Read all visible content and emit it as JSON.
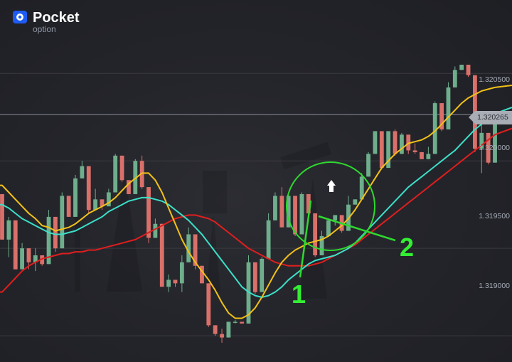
{
  "brand": {
    "name": "Pocket",
    "sub": "option"
  },
  "chart_data": {
    "type": "candlestick",
    "y_ticks": [
      {
        "value": 1.3205,
        "label": "1.320500"
      },
      {
        "value": 1.32,
        "label": "1.320000"
      },
      {
        "value": 1.3195,
        "label": "1.319500"
      },
      {
        "value": 1.319,
        "label": "1.319000"
      }
    ],
    "current_price": {
      "value": 1.320265,
      "label": "1.320265"
    },
    "ylim": [
      1.31885,
      1.32092
    ],
    "candles": [
      [
        1.31981,
        1.31981,
        1.31955,
        1.31955
      ],
      [
        1.31955,
        1.31968,
        1.31945,
        1.31966
      ],
      [
        1.31966,
        1.31966,
        1.31938,
        1.31938
      ],
      [
        1.31938,
        1.31953,
        1.31938,
        1.3195
      ],
      [
        1.3195,
        1.3195,
        1.31938,
        1.31942
      ],
      [
        1.31942,
        1.3195,
        1.31937,
        1.31946
      ],
      [
        1.31946,
        1.31946,
        1.3194,
        1.31941
      ],
      [
        1.31941,
        1.31972,
        1.31941,
        1.31968
      ],
      [
        1.31968,
        1.31968,
        1.31948,
        1.3195
      ],
      [
        1.3195,
        1.31982,
        1.3195,
        1.3198
      ],
      [
        1.3198,
        1.3198,
        1.31968,
        1.31968
      ],
      [
        1.31968,
        1.31992,
        1.31968,
        1.3199
      ],
      [
        1.3199,
        1.32,
        1.3199,
        1.31997
      ],
      [
        1.31997,
        1.31997,
        1.3197,
        1.31972
      ],
      [
        1.31972,
        1.31984,
        1.31972,
        1.31978
      ],
      [
        1.31978,
        1.31978,
        1.31972,
        1.31974
      ],
      [
        1.31974,
        1.31984,
        1.31974,
        1.31982
      ],
      [
        1.31982,
        1.32004,
        1.31982,
        1.32003
      ],
      [
        1.32003,
        1.32003,
        1.31988,
        1.31989
      ],
      [
        1.31989,
        1.31989,
        1.31981,
        1.31981
      ],
      [
        1.31981,
        1.32001,
        1.31981,
        1.32
      ],
      [
        1.32,
        1.32003,
        1.31984,
        1.31985
      ],
      [
        1.31985,
        1.31985,
        1.31953,
        1.31956
      ],
      [
        1.31956,
        1.31967,
        1.31956,
        1.31964
      ],
      [
        1.31964,
        1.31964,
        1.31928,
        1.31928
      ],
      [
        1.31928,
        1.31935,
        1.31925,
        1.31932
      ],
      [
        1.31932,
        1.31932,
        1.31928,
        1.3193
      ],
      [
        1.3193,
        1.31946,
        1.31925,
        1.31942
      ],
      [
        1.31942,
        1.31962,
        1.31942,
        1.31958
      ],
      [
        1.31958,
        1.31958,
        1.31938,
        1.3194
      ],
      [
        1.3194,
        1.3194,
        1.3193,
        1.3193
      ],
      [
        1.3193,
        1.3193,
        1.31905,
        1.31906
      ],
      [
        1.31906,
        1.31906,
        1.319,
        1.31901
      ],
      [
        1.31901,
        1.31904,
        1.31896,
        1.31899
      ],
      [
        1.31899,
        1.31908,
        1.31899,
        1.31908
      ],
      [
        1.31908,
        1.31909,
        1.31907,
        1.31908
      ],
      [
        1.31908,
        1.31908,
        1.31907,
        1.31907
      ],
      [
        1.31907,
        1.31946,
        1.31907,
        1.31942
      ],
      [
        1.31942,
        1.31942,
        1.31924,
        1.31925
      ],
      [
        1.31925,
        1.31945,
        1.31925,
        1.31944
      ],
      [
        1.31944,
        1.3197,
        1.31944,
        1.31966
      ],
      [
        1.31966,
        1.31982,
        1.31966,
        1.3198
      ],
      [
        1.3198,
        1.31985,
        1.31962,
        1.31962
      ],
      [
        1.31962,
        1.31982,
        1.31962,
        1.3198
      ],
      [
        1.3198,
        1.3198,
        1.31957,
        1.31958
      ],
      [
        1.31958,
        1.31982,
        1.31958,
        1.31981
      ],
      [
        1.31981,
        1.31981,
        1.31969,
        1.3197
      ],
      [
        1.3197,
        1.3197,
        1.31945,
        1.31946
      ],
      [
        1.31946,
        1.3196,
        1.31946,
        1.31957
      ],
      [
        1.31957,
        1.31967,
        1.31957,
        1.31966
      ],
      [
        1.31966,
        1.31969,
        1.31963,
        1.31969
      ],
      [
        1.31969,
        1.31969,
        1.31959,
        1.3196
      ],
      [
        1.3196,
        1.3198,
        1.3196,
        1.31975
      ],
      [
        1.31975,
        1.31978,
        1.31975,
        1.31978
      ],
      [
        1.31978,
        1.31993,
        1.31978,
        1.31991
      ],
      [
        1.31991,
        1.32005,
        1.31991,
        1.32004
      ],
      [
        1.32004,
        1.32017,
        1.32004,
        1.32017
      ],
      [
        1.32017,
        1.32017,
        1.31995,
        1.31996
      ],
      [
        1.31996,
        1.32017,
        1.31996,
        1.32017
      ],
      [
        1.32017,
        1.32018,
        1.32003,
        1.32004
      ],
      [
        1.32004,
        1.32016,
        1.32004,
        1.32015
      ],
      [
        1.32015,
        1.32015,
        1.32004,
        1.32006
      ],
      [
        1.32006,
        1.3201,
        1.32004,
        1.32005
      ],
      [
        1.32005,
        1.32005,
        1.32001,
        1.32001
      ],
      [
        1.32001,
        1.32008,
        1.32001,
        1.32004
      ],
      [
        1.32004,
        1.32034,
        1.32004,
        1.32033
      ],
      [
        1.32033,
        1.32033,
        1.32017,
        1.32018
      ],
      [
        1.32018,
        1.32045,
        1.32018,
        1.32042
      ],
      [
        1.32042,
        1.32054,
        1.32042,
        1.32052
      ],
      [
        1.32052,
        1.32055,
        1.32052,
        1.32055
      ],
      [
        1.32055,
        1.32055,
        1.32048,
        1.32049
      ],
      [
        1.32049,
        1.32049,
        1.32005,
        1.32007
      ],
      [
        1.32007,
        1.32022,
        1.31993,
        1.32016
      ],
      [
        1.32016,
        1.32016,
        1.31998,
        1.31999
      ],
      [
        1.31999,
        1.32028,
        1.31999,
        1.32026
      ]
    ],
    "series": [
      {
        "color": "#f2c118",
        "values": [
          1.31986,
          1.31982,
          1.31978,
          1.31974,
          1.3197,
          1.31967,
          1.31963,
          1.31962,
          1.3196,
          1.31961,
          1.31962,
          1.31964,
          1.31967,
          1.3197,
          1.31972,
          1.31974,
          1.31976,
          1.31979,
          1.31983,
          1.31987,
          1.3199,
          1.31993,
          1.31993,
          1.31989,
          1.31982,
          1.31973,
          1.31964,
          1.31955,
          1.31948,
          1.31942,
          1.31937,
          1.31932,
          1.31926,
          1.31919,
          1.31913,
          1.3191,
          1.3191,
          1.31912,
          1.31916,
          1.31922,
          1.31929,
          1.31936,
          1.31942,
          1.31946,
          1.31949,
          1.31951,
          1.31953,
          1.31954,
          1.31955,
          1.31957,
          1.3196,
          1.31963,
          1.31967,
          1.31972,
          1.31978,
          1.31984,
          1.3199,
          1.31996,
          1.32,
          1.32004,
          1.32007,
          1.3201,
          1.32011,
          1.32012,
          1.32014,
          1.32017,
          1.32021,
          1.32025,
          1.32029,
          1.32033,
          1.32036,
          1.32038,
          1.3204,
          1.32041,
          1.32042
        ]
      },
      {
        "color": "#3be0c8",
        "values": [
          1.31975,
          1.31973,
          1.3197,
          1.31967,
          1.31965,
          1.31963,
          1.31961,
          1.31959,
          1.31958,
          1.31958,
          1.31959,
          1.3196,
          1.31962,
          1.31964,
          1.31966,
          1.31968,
          1.31971,
          1.31973,
          1.31975,
          1.31977,
          1.31978,
          1.31979,
          1.31979,
          1.31978,
          1.31977,
          1.31975,
          1.31972,
          1.31969,
          1.31966,
          1.31962,
          1.31958,
          1.31953,
          1.31948,
          1.31943,
          1.31938,
          1.31933,
          1.31928,
          1.31925,
          1.31923,
          1.31922,
          1.31923,
          1.31925,
          1.31928,
          1.31932,
          1.31935,
          1.31938,
          1.31941,
          1.31943,
          1.31944,
          1.31945,
          1.31946,
          1.31948,
          1.3195,
          1.31953,
          1.31957,
          1.31961,
          1.31965,
          1.31969,
          1.31973,
          1.31977,
          1.31981,
          1.31985,
          1.31988,
          1.31991,
          1.31994,
          1.31997,
          1.32,
          1.32003,
          1.32006,
          1.3201,
          1.32014,
          1.32018,
          1.32021,
          1.32024,
          1.32027
        ]
      },
      {
        "color": "#e01e1e",
        "values": [
          1.31925,
          1.31929,
          1.31933,
          1.31937,
          1.3194,
          1.31942,
          1.31944,
          1.31945,
          1.31946,
          1.31947,
          1.31947,
          1.31948,
          1.31948,
          1.31949,
          1.31949,
          1.3195,
          1.31951,
          1.31952,
          1.31953,
          1.31954,
          1.31955,
          1.31957,
          1.31959,
          1.31961,
          1.31963,
          1.31965,
          1.31967,
          1.31968,
          1.31969,
          1.31969,
          1.31968,
          1.31967,
          1.31965,
          1.31962,
          1.31959,
          1.31956,
          1.31953,
          1.3195,
          1.31948,
          1.31946,
          1.31944,
          1.31942,
          1.31941,
          1.3194,
          1.3194,
          1.3194,
          1.3194,
          1.31941,
          1.31942,
          1.31944,
          1.31946,
          1.31948,
          1.3195,
          1.31952,
          1.31955,
          1.31958,
          1.31961,
          1.31964,
          1.31967,
          1.3197,
          1.31973,
          1.31976,
          1.31979,
          1.31982,
          1.31985,
          1.31988,
          1.31991,
          1.31994,
          1.31997,
          1.32,
          1.32003,
          1.32006,
          1.32009,
          1.32012,
          1.32015
        ]
      }
    ],
    "annotations": [
      {
        "label": "1"
      },
      {
        "label": "2"
      }
    ]
  }
}
